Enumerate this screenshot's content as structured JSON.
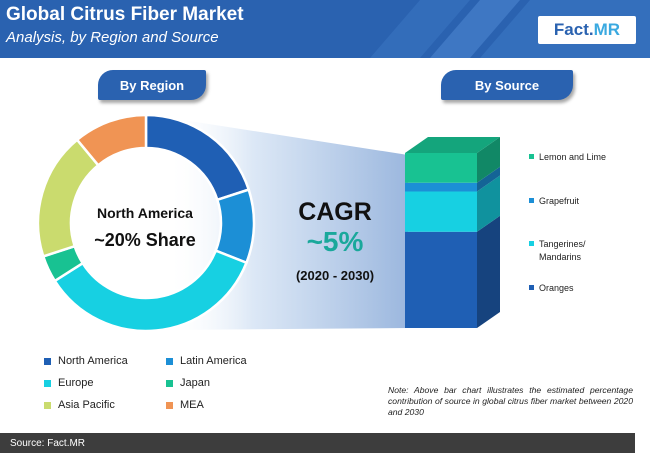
{
  "header": {
    "title": "Global Citrus Fiber Market",
    "subtitle": "Analysis, by Region and Source",
    "logo_part1": "Fact.",
    "logo_part2": "MR"
  },
  "buttons": {
    "region": "By Region",
    "source": "By Source"
  },
  "center": {
    "region": "North America",
    "share": "~20% Share"
  },
  "cagr": {
    "label": "CAGR",
    "value": "~5%",
    "period": "(2020 - 2030)"
  },
  "note": "Note: Above bar chart illustrates the estimated percentage contribution of source in  global citrus fiber market between 2020 and 2030",
  "footer": "Source: Fact.MR",
  "chart_data": [
    {
      "type": "pie",
      "variant": "donut",
      "labels": [
        "North America",
        "Latin America",
        "Europe",
        "Japan",
        "Asia Pacific",
        "MEA"
      ],
      "values": [
        20,
        11,
        35,
        4,
        19,
        11
      ],
      "colors": [
        "#1f5fb4",
        "#1c8fd6",
        "#17d0e2",
        "#18c292",
        "#cadb6e",
        "#f09454"
      ],
      "legend": "bottom"
    },
    {
      "type": "bar",
      "variant": "stacked-3d",
      "categories": [
        "Oranges",
        "Tangerines/ Mandarins",
        "Grapefruit",
        "Lemon and Lime"
      ],
      "values": [
        55,
        23,
        5,
        17
      ],
      "colors": [
        "#1f5fb4",
        "#17d0e2",
        "#1c8fd6",
        "#18c292"
      ],
      "legend": "right"
    }
  ]
}
